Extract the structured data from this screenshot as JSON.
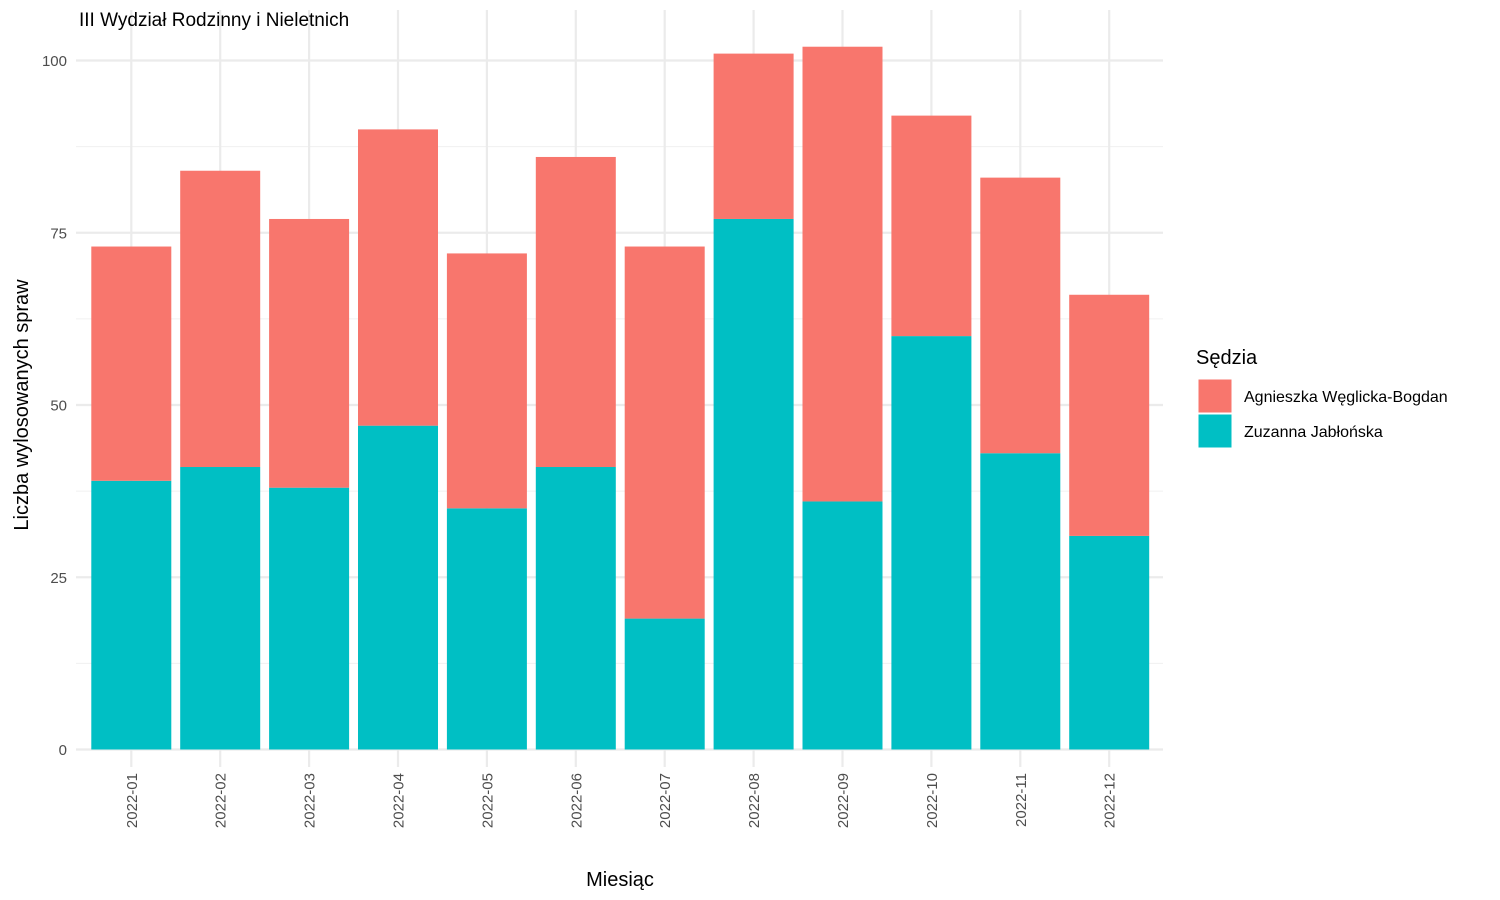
{
  "chart_data": {
    "type": "bar",
    "stacked": true,
    "title": "III Wydział Rodzinny i Nieletnich",
    "xlabel": "Miesiąc",
    "ylabel": "Liczba wylosowanych spraw",
    "ylim": [
      0,
      105
    ],
    "yticks": [
      0,
      25,
      50,
      75,
      100
    ],
    "grid": true,
    "categories": [
      "2022-01",
      "2022-02",
      "2022-03",
      "2022-04",
      "2022-05",
      "2022-06",
      "2022-07",
      "2022-08",
      "2022-09",
      "2022-10",
      "2022-11",
      "2022-12"
    ],
    "legend": {
      "title": "Sędzia",
      "position": "right"
    },
    "series": [
      {
        "name": "Zuzanna Jabłońska",
        "color": "#00BFC4",
        "values": [
          39,
          41,
          38,
          47,
          35,
          41,
          19,
          77,
          36,
          60,
          43,
          31
        ]
      },
      {
        "name": "Agnieszka Węglicka-Bogdan",
        "color": "#F8766D",
        "values": [
          34,
          43,
          39,
          43,
          37,
          45,
          54,
          24,
          66,
          32,
          40,
          35
        ]
      }
    ],
    "legend_order": [
      1,
      0
    ]
  }
}
